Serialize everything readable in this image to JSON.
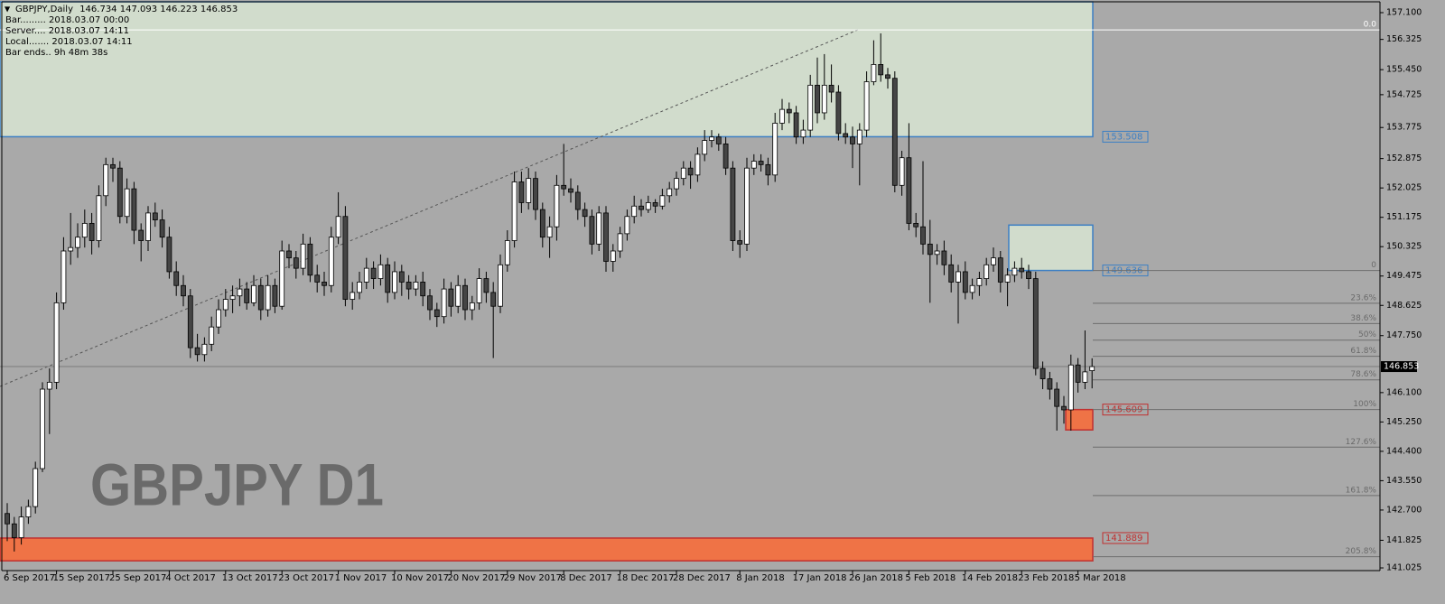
{
  "chart_data": {
    "type": "candlestick",
    "symbol_label": "GBPJPY,Daily",
    "watermark": "GBPJPY D1",
    "info": [
      "Bar......... 2018.03.07 00:00",
      "Server.... 2018.03.07 14:11",
      "Local....... 2018.03.07 14:11",
      "Bar ends.. 9h 48m 38s"
    ],
    "bull_color": "#ffffff",
    "bear_color": "#454545",
    "categories": [
      "6 Sep 2017",
      null,
      null,
      null,
      null,
      null,
      null,
      "15 Sep 2017",
      null,
      null,
      null,
      null,
      null,
      null,
      null,
      "25 Sep 2017",
      null,
      null,
      null,
      null,
      null,
      null,
      null,
      "4 Oct 2017",
      null,
      null,
      null,
      null,
      null,
      null,
      null,
      "13 Oct 2017",
      null,
      null,
      null,
      null,
      null,
      null,
      null,
      "23 Oct 2017",
      null,
      null,
      null,
      null,
      null,
      null,
      null,
      "1 Nov 2017",
      null,
      null,
      null,
      null,
      null,
      null,
      null,
      "10 Nov 2017",
      null,
      null,
      null,
      null,
      null,
      null,
      null,
      "20 Nov 2017",
      null,
      null,
      null,
      null,
      null,
      null,
      null,
      "29 Nov 2017",
      null,
      null,
      null,
      null,
      null,
      null,
      null,
      "8 Dec 2017",
      null,
      null,
      null,
      null,
      null,
      null,
      null,
      "18 Dec 2017",
      null,
      null,
      null,
      null,
      null,
      null,
      null,
      "28 Dec 2017",
      null,
      null,
      null,
      null,
      null,
      null,
      null,
      null,
      "8 Jan 2018",
      null,
      null,
      null,
      null,
      null,
      null,
      null,
      "17 Jan 2018",
      null,
      null,
      null,
      null,
      null,
      null,
      null,
      "26 Jan 2018",
      null,
      null,
      null,
      null,
      null,
      null,
      null,
      "5 Feb 2018",
      null,
      null,
      null,
      null,
      null,
      null,
      null,
      "14 Feb 2018",
      null,
      null,
      null,
      null,
      null,
      null,
      null,
      "23 Feb 2018",
      null,
      null,
      null,
      null,
      null,
      null,
      null,
      "5 Mar 2018",
      null,
      null
    ],
    "ohlc": [
      [
        142.6,
        142.9,
        141.8,
        142.3
      ],
      [
        142.3,
        142.5,
        141.5,
        141.9
      ],
      [
        141.9,
        142.8,
        141.7,
        142.5
      ],
      [
        142.5,
        143.0,
        142.3,
        142.8
      ],
      [
        142.8,
        144.1,
        142.6,
        143.9
      ],
      [
        143.9,
        146.4,
        143.8,
        146.2
      ],
      [
        146.2,
        146.8,
        144.9,
        146.4
      ],
      [
        146.4,
        149.0,
        146.2,
        148.7
      ],
      [
        148.7,
        150.6,
        148.5,
        150.2
      ],
      [
        150.2,
        151.3,
        149.8,
        150.3
      ],
      [
        150.3,
        151.0,
        150.0,
        150.6
      ],
      [
        150.6,
        151.4,
        150.3,
        151.0
      ],
      [
        151.0,
        151.3,
        150.1,
        150.5
      ],
      [
        150.5,
        152.1,
        150.3,
        151.8
      ],
      [
        151.8,
        152.9,
        151.5,
        152.7
      ],
      [
        152.7,
        152.9,
        152.2,
        152.6
      ],
      [
        152.6,
        152.8,
        151.0,
        151.2
      ],
      [
        151.2,
        152.3,
        151.0,
        152.0
      ],
      [
        152.0,
        152.2,
        150.4,
        150.8
      ],
      [
        150.8,
        151.0,
        149.9,
        150.5
      ],
      [
        150.5,
        151.5,
        150.2,
        151.3
      ],
      [
        151.3,
        151.6,
        150.9,
        151.1
      ],
      [
        151.1,
        151.4,
        150.3,
        150.6
      ],
      [
        150.6,
        150.9,
        149.4,
        149.6
      ],
      [
        149.6,
        149.9,
        148.9,
        149.2
      ],
      [
        149.2,
        149.5,
        148.6,
        148.9
      ],
      [
        148.9,
        149.1,
        147.1,
        147.4
      ],
      [
        147.4,
        147.8,
        147.0,
        147.2
      ],
      [
        147.2,
        147.7,
        147.0,
        147.5
      ],
      [
        147.5,
        148.3,
        147.3,
        148.0
      ],
      [
        148.0,
        148.8,
        147.8,
        148.5
      ],
      [
        148.5,
        149.1,
        148.3,
        148.8
      ],
      [
        148.8,
        149.2,
        148.4,
        148.9
      ],
      [
        148.9,
        149.4,
        148.6,
        149.1
      ],
      [
        149.1,
        149.3,
        148.5,
        148.7
      ],
      [
        148.7,
        149.5,
        148.6,
        149.2
      ],
      [
        149.2,
        149.4,
        148.2,
        148.5
      ],
      [
        148.5,
        149.5,
        148.3,
        149.2
      ],
      [
        149.2,
        149.4,
        148.4,
        148.6
      ],
      [
        148.6,
        150.5,
        148.5,
        150.2
      ],
      [
        150.2,
        150.4,
        149.7,
        150.0
      ],
      [
        150.0,
        150.2,
        149.4,
        149.7
      ],
      [
        149.7,
        150.7,
        149.5,
        150.4
      ],
      [
        150.4,
        150.6,
        149.3,
        149.5
      ],
      [
        149.5,
        149.8,
        149.0,
        149.3
      ],
      [
        149.3,
        149.6,
        148.9,
        149.2
      ],
      [
        149.2,
        150.9,
        149.0,
        150.6
      ],
      [
        150.6,
        151.9,
        150.4,
        151.2
      ],
      [
        151.2,
        151.5,
        148.6,
        148.8
      ],
      [
        148.8,
        149.3,
        148.5,
        149.0
      ],
      [
        149.0,
        149.6,
        148.8,
        149.3
      ],
      [
        149.3,
        150.0,
        149.1,
        149.7
      ],
      [
        149.7,
        149.9,
        149.1,
        149.4
      ],
      [
        149.4,
        150.1,
        149.2,
        149.8
      ],
      [
        149.8,
        150.0,
        148.7,
        149.0
      ],
      [
        149.0,
        149.9,
        148.8,
        149.6
      ],
      [
        149.6,
        149.8,
        148.9,
        149.3
      ],
      [
        149.3,
        149.5,
        148.8,
        149.1
      ],
      [
        149.1,
        149.5,
        148.9,
        149.3
      ],
      [
        149.3,
        149.6,
        148.6,
        148.9
      ],
      [
        148.9,
        149.1,
        148.2,
        148.5
      ],
      [
        148.5,
        148.7,
        148.0,
        148.3
      ],
      [
        148.3,
        149.4,
        148.1,
        149.1
      ],
      [
        149.1,
        149.3,
        148.3,
        148.6
      ],
      [
        148.6,
        149.5,
        148.4,
        149.2
      ],
      [
        149.2,
        149.4,
        148.2,
        148.5
      ],
      [
        148.5,
        148.9,
        148.2,
        148.7
      ],
      [
        148.7,
        149.7,
        148.5,
        149.4
      ],
      [
        149.4,
        149.6,
        148.7,
        149.0
      ],
      [
        149.0,
        149.3,
        147.1,
        148.6
      ],
      [
        148.6,
        150.1,
        148.4,
        149.8
      ],
      [
        149.8,
        150.8,
        149.6,
        150.5
      ],
      [
        150.5,
        152.5,
        150.3,
        152.2
      ],
      [
        152.2,
        152.5,
        151.3,
        151.6
      ],
      [
        151.6,
        152.6,
        151.4,
        152.3
      ],
      [
        152.3,
        152.5,
        151.1,
        151.4
      ],
      [
        151.4,
        151.6,
        150.3,
        150.6
      ],
      [
        150.6,
        151.2,
        150.0,
        150.9
      ],
      [
        150.9,
        152.4,
        150.5,
        152.1
      ],
      [
        152.1,
        153.3,
        151.8,
        152.0
      ],
      [
        152.0,
        152.3,
        151.6,
        151.9
      ],
      [
        151.9,
        152.1,
        151.1,
        151.4
      ],
      [
        151.4,
        151.6,
        150.9,
        151.2
      ],
      [
        151.2,
        151.4,
        150.1,
        150.4
      ],
      [
        150.4,
        151.5,
        150.2,
        151.3
      ],
      [
        151.3,
        151.5,
        149.6,
        149.9
      ],
      [
        149.9,
        150.4,
        149.6,
        150.2
      ],
      [
        150.2,
        150.9,
        150.0,
        150.7
      ],
      [
        150.7,
        151.4,
        150.5,
        151.2
      ],
      [
        151.2,
        151.8,
        151.0,
        151.5
      ],
      [
        151.5,
        151.7,
        151.2,
        151.4
      ],
      [
        151.4,
        151.8,
        151.3,
        151.6
      ],
      [
        151.6,
        151.7,
        151.3,
        151.5
      ],
      [
        151.5,
        152.0,
        151.4,
        151.8
      ],
      [
        151.8,
        152.2,
        151.6,
        152.0
      ],
      [
        152.0,
        152.5,
        151.8,
        152.3
      ],
      [
        152.3,
        152.8,
        152.1,
        152.6
      ],
      [
        152.6,
        152.8,
        152.0,
        152.4
      ],
      [
        152.4,
        153.2,
        152.2,
        153.0
      ],
      [
        153.0,
        153.7,
        152.8,
        153.4
      ],
      [
        153.4,
        153.7,
        153.2,
        153.5
      ],
      [
        153.5,
        153.6,
        153.1,
        153.3
      ],
      [
        153.3,
        153.5,
        152.4,
        152.6
      ],
      [
        152.6,
        152.8,
        150.2,
        150.5
      ],
      [
        150.5,
        150.8,
        150.0,
        150.4
      ],
      [
        150.4,
        152.9,
        150.2,
        152.6
      ],
      [
        152.6,
        153.0,
        152.4,
        152.8
      ],
      [
        152.8,
        153.0,
        152.5,
        152.7
      ],
      [
        152.7,
        152.9,
        152.1,
        152.4
      ],
      [
        152.4,
        154.2,
        152.2,
        153.9
      ],
      [
        153.9,
        154.6,
        153.7,
        154.3
      ],
      [
        154.3,
        154.5,
        153.9,
        154.2
      ],
      [
        154.2,
        154.4,
        153.3,
        153.5
      ],
      [
        153.5,
        154.0,
        153.3,
        153.7
      ],
      [
        153.7,
        155.3,
        153.5,
        155.0
      ],
      [
        155.0,
        155.8,
        153.9,
        154.2
      ],
      [
        154.2,
        155.9,
        154.0,
        155.0
      ],
      [
        155.0,
        155.6,
        154.5,
        154.8
      ],
      [
        154.8,
        155.0,
        153.4,
        153.6
      ],
      [
        153.6,
        153.9,
        153.3,
        153.5
      ],
      [
        153.5,
        153.8,
        152.6,
        153.3
      ],
      [
        153.3,
        153.9,
        152.1,
        153.7
      ],
      [
        153.7,
        155.4,
        153.5,
        155.1
      ],
      [
        155.1,
        156.3,
        155.0,
        155.6
      ],
      [
        155.6,
        156.5,
        155.1,
        155.3
      ],
      [
        155.3,
        155.5,
        154.9,
        155.2
      ],
      [
        155.2,
        155.4,
        151.9,
        152.1
      ],
      [
        152.1,
        153.1,
        151.8,
        152.9
      ],
      [
        152.9,
        153.9,
        150.8,
        151.0
      ],
      [
        151.0,
        151.3,
        150.6,
        150.9
      ],
      [
        150.9,
        152.8,
        150.1,
        150.4
      ],
      [
        150.4,
        151.1,
        148.7,
        150.1
      ],
      [
        150.1,
        150.4,
        149.8,
        150.2
      ],
      [
        150.2,
        150.5,
        149.5,
        149.8
      ],
      [
        149.8,
        150.1,
        149.0,
        149.3
      ],
      [
        149.3,
        149.8,
        148.1,
        149.6
      ],
      [
        149.6,
        149.9,
        148.8,
        149.0
      ],
      [
        149.0,
        149.4,
        148.8,
        149.2
      ],
      [
        149.2,
        149.6,
        148.9,
        149.4
      ],
      [
        149.4,
        150.0,
        149.2,
        149.8
      ],
      [
        149.8,
        150.3,
        149.6,
        150.0
      ],
      [
        150.0,
        150.2,
        149.0,
        149.3
      ],
      [
        149.3,
        149.7,
        148.6,
        149.5
      ],
      [
        149.5,
        149.9,
        149.3,
        149.7
      ],
      [
        149.7,
        150.0,
        149.4,
        149.6
      ],
      [
        149.6,
        149.8,
        149.1,
        149.4
      ],
      [
        149.4,
        149.6,
        146.6,
        146.8
      ],
      [
        146.8,
        147.0,
        146.2,
        146.5
      ],
      [
        146.5,
        146.7,
        145.9,
        146.2
      ],
      [
        146.2,
        146.4,
        145.0,
        145.7
      ],
      [
        145.7,
        146.0,
        145.2,
        145.6
      ],
      [
        145.6,
        147.2,
        145.0,
        146.9
      ],
      [
        146.9,
        147.1,
        146.1,
        146.4
      ],
      [
        146.4,
        147.9,
        146.2,
        146.7
      ],
      [
        146.734,
        147.093,
        146.223,
        146.853
      ]
    ],
    "ylim": [
      140.947,
      157.414
    ],
    "yticks": [
      {
        "value": 157.1,
        "label": "157.100"
      },
      {
        "value": 156.325,
        "label": "156.325"
      },
      {
        "value": 155.45,
        "label": "155.450"
      },
      {
        "value": 154.725,
        "label": "154.725"
      },
      {
        "value": 153.775,
        "label": "153.775"
      },
      {
        "value": 152.875,
        "label": "152.875"
      },
      {
        "value": 152.025,
        "label": "152.025"
      },
      {
        "value": 151.175,
        "label": "151.175"
      },
      {
        "value": 150.325,
        "label": "150.325"
      },
      {
        "value": 149.475,
        "label": "149.475"
      },
      {
        "value": 148.625,
        "label": "148.625"
      },
      {
        "value": 147.75,
        "label": "147.750"
      },
      {
        "value": 146.1,
        "label": "146.100"
      },
      {
        "value": 145.25,
        "label": "145.250"
      },
      {
        "value": 144.4,
        "label": "144.400"
      },
      {
        "value": 143.55,
        "label": "143.550"
      },
      {
        "value": 142.7,
        "label": "142.700"
      },
      {
        "value": 141.825,
        "label": "141.825"
      },
      {
        "value": 141.025,
        "label": "141.025"
      }
    ],
    "zones": [
      {
        "high": 157.414,
        "low": 153.508,
        "color": "#d1dccc",
        "border": "#3c7fc4"
      },
      {
        "high": 150.95,
        "low": 149.636,
        "color": "#d1dccc",
        "border": "#3c7fc4"
      },
      {
        "high": 145.609,
        "low": 145.02,
        "color": "#ef7346",
        "border": "#c03030"
      },
      {
        "high": 141.889,
        "low": 141.23,
        "color": "#ef7346",
        "border": "#c03030"
      }
    ],
    "fib_levels": [
      {
        "label": "0.0",
        "value": 156.6
      },
      {
        "label": "0",
        "value": 149.636
      },
      {
        "label": "23.6%",
        "value": 148.686
      },
      {
        "label": "38.6%",
        "value": 148.098
      },
      {
        "label": "50%",
        "value": 147.62
      },
      {
        "label": "61.8%",
        "value": 147.15
      },
      {
        "label": "78.6%",
        "value": 146.47
      },
      {
        "label": "100%",
        "value": 145.609
      },
      {
        "label": "127.6%",
        "value": 144.52
      },
      {
        "label": "161.8%",
        "value": 143.12
      },
      {
        "label": "205.8%",
        "value": 141.35
      }
    ]
  }
}
